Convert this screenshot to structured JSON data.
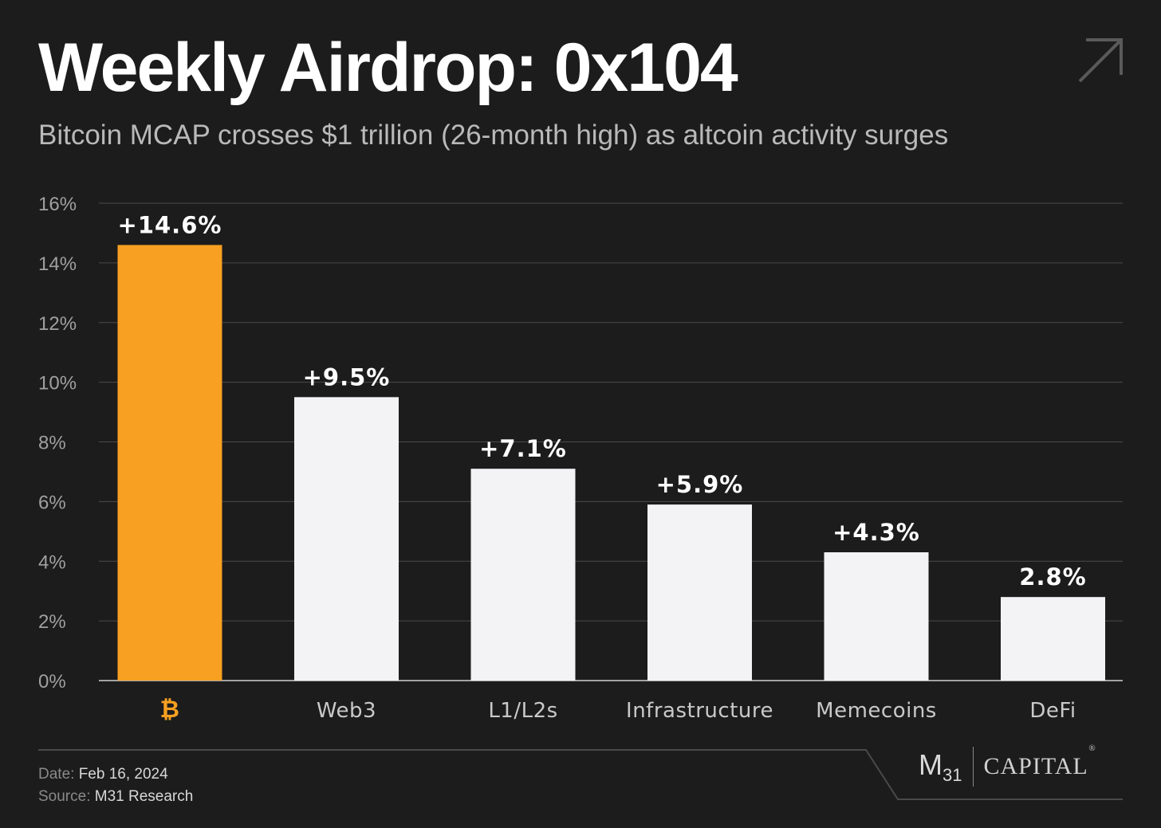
{
  "title": "Weekly Airdrop: 0x104",
  "subtitle": "Bitcoin MCAP crosses $1 trillion (26-month high) as altcoin activity surges",
  "footer": {
    "date_label": "Date:",
    "date_value": "Feb 16, 2024",
    "source_label": "Source:",
    "source_value": "M31 Research"
  },
  "logo": {
    "m31_text": "M",
    "m31_sub": "31",
    "capital_text": "CAPITAL",
    "registered_mark": "®"
  },
  "icons": {
    "corner": "arrow-up-right-icon",
    "bitcoin": "bitcoin-icon"
  },
  "colors": {
    "background": "#1c1c1c",
    "highlight_bar": "#f7a021",
    "bar": "#f3f3f6",
    "grid": "#4a4a4a",
    "axis_text": "#a0a0a0"
  },
  "chart_data": {
    "type": "bar",
    "categories": [
      "₿",
      "Web3",
      "L1/L2s",
      "Infrastructure",
      "Memecoins",
      "DeFi"
    ],
    "values": [
      14.6,
      9.5,
      7.1,
      5.9,
      4.3,
      2.8
    ],
    "data_labels": [
      "+14.6%",
      "+9.5%",
      "+7.1%",
      "+5.9%",
      "+4.3%",
      "2.8%"
    ],
    "highlight_index": 0,
    "ylim": [
      0,
      16
    ],
    "yticks": [
      0,
      2,
      4,
      6,
      8,
      10,
      12,
      14,
      16
    ],
    "ytick_labels": [
      "0%",
      "2%",
      "4%",
      "6%",
      "8%",
      "10%",
      "12%",
      "14%",
      "16%"
    ],
    "grid": true,
    "xlabel": "",
    "ylabel": ""
  }
}
